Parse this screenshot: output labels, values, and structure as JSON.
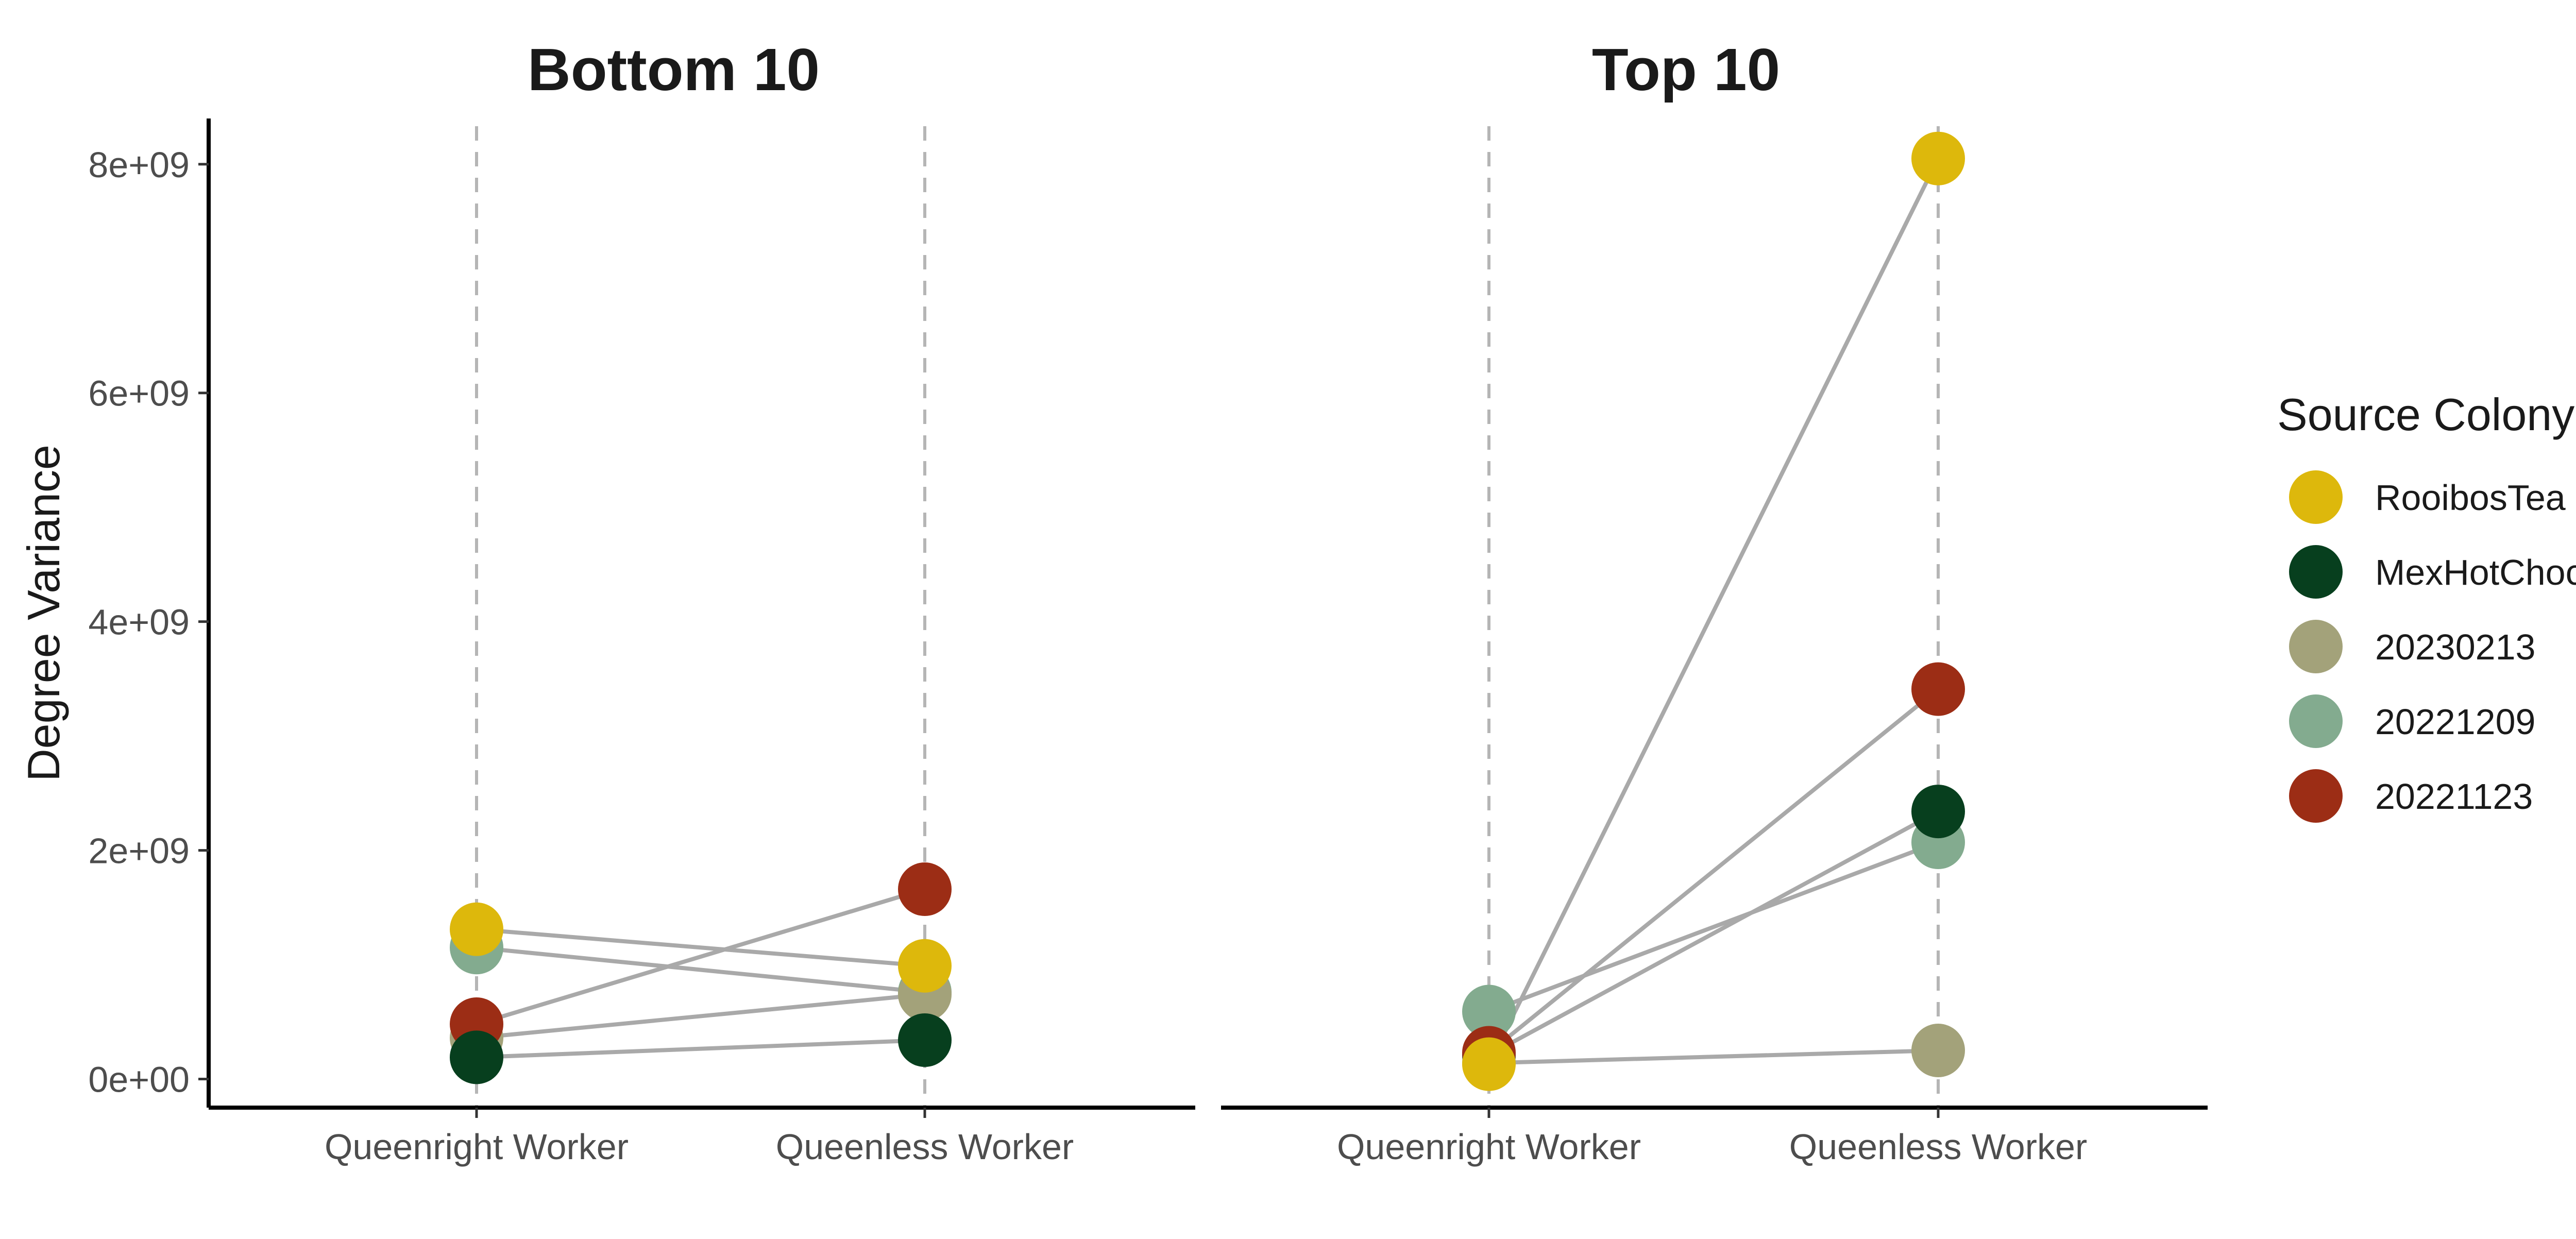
{
  "chart_data": {
    "type": "scatter",
    "subtype": "paired-slope",
    "ylabel": "Degree Variance",
    "y_ticks": [
      "0e+00",
      "2e+09",
      "4e+09",
      "6e+09",
      "8e+09"
    ],
    "ylim": [
      -250000000,
      8400000000
    ],
    "x_categories": [
      "Queenright Worker",
      "Queenless Worker"
    ],
    "grid": false,
    "vertical_guides": "dashed at each category",
    "legend": {
      "title": "Source Colony",
      "position": "right",
      "entries": [
        {
          "name": "RooibosTea",
          "color": "#DDB80C"
        },
        {
          "name": "MexHotChoc",
          "color": "#073F1E"
        },
        {
          "name": "20230213",
          "color": "#A3A27A"
        },
        {
          "name": "20221209",
          "color": "#83AB8F"
        },
        {
          "name": "20221123",
          "color": "#9C2D15"
        }
      ]
    },
    "panels": [
      {
        "title": "Bottom 10",
        "series": [
          {
            "colony": "20221209",
            "values": [
              1150000000,
              760000000
            ]
          },
          {
            "colony": "20230213",
            "values": [
              360000000,
              740000000
            ]
          },
          {
            "colony": "20221123",
            "values": [
              480000000,
              1660000000
            ]
          },
          {
            "colony": "RooibosTea",
            "values": [
              1310000000,
              990000000
            ]
          },
          {
            "colony": "MexHotChoc",
            "values": [
              190000000,
              340000000
            ]
          }
        ]
      },
      {
        "title": "Top 10",
        "series": [
          {
            "colony": "20230213",
            "values": [
              140000000,
              250000000
            ]
          },
          {
            "colony": "20221209",
            "values": [
              590000000,
              2070000000
            ]
          },
          {
            "colony": "MexHotChoc",
            "values": [
              210000000,
              2340000000
            ]
          },
          {
            "colony": "20221123",
            "values": [
              230000000,
              3410000000
            ]
          },
          {
            "colony": "RooibosTea",
            "values": [
              130000000,
              8050000000
            ]
          }
        ]
      }
    ]
  }
}
